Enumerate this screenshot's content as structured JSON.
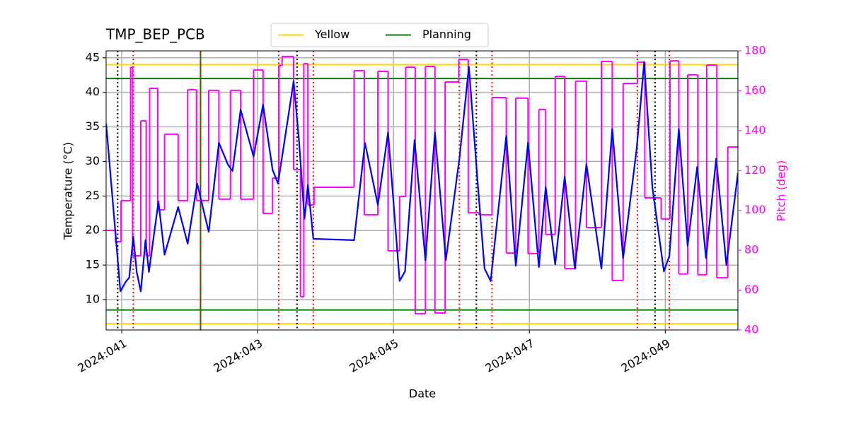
{
  "chart_data": {
    "type": "line",
    "title": "TMP_BEP_PCB",
    "xlabel": "Date",
    "ylabel": "Temperature (°C)",
    "y2label": "Pitch (deg)",
    "xlim": [
      40.77,
      50.07
    ],
    "xticks": [
      {
        "value": 41,
        "label": "2024:041"
      },
      {
        "value": 43,
        "label": "2024:043"
      },
      {
        "value": 45,
        "label": "2024:045"
      },
      {
        "value": 47,
        "label": "2024:047"
      },
      {
        "value": 49,
        "label": "2024:049"
      }
    ],
    "ylim": [
      5.6,
      46.0
    ],
    "yticks": [
      10,
      15,
      20,
      25,
      30,
      35,
      40,
      45
    ],
    "y2lim": [
      40,
      180
    ],
    "y2ticks": [
      40,
      60,
      80,
      100,
      120,
      140,
      160,
      180
    ],
    "grid": true,
    "legend": "upper center",
    "limits": [
      {
        "name": "Yellow",
        "color": "#ffd700",
        "values": [
          6.5,
          44
        ]
      },
      {
        "name": "Planning",
        "color": "#008000",
        "values": [
          8.5,
          42
        ]
      }
    ],
    "vlines": [
      {
        "x": 42.16,
        "color": "#008000",
        "style": "solid"
      },
      {
        "x": 40.94,
        "color": "#000000",
        "style": "dotted"
      },
      {
        "x": 43.58,
        "color": "#000000",
        "style": "dotted"
      },
      {
        "x": 46.22,
        "color": "#000000",
        "style": "dotted"
      },
      {
        "x": 48.85,
        "color": "#000000",
        "style": "dotted"
      },
      {
        "x": 41.17,
        "color": "#ff0000",
        "style": "dotted"
      },
      {
        "x": 42.16,
        "color": "#ff0000",
        "style": "dotted"
      },
      {
        "x": 43.31,
        "color": "#ff0000",
        "style": "dotted"
      },
      {
        "x": 43.82,
        "color": "#ff0000",
        "style": "dotted"
      },
      {
        "x": 45.97,
        "color": "#ff0000",
        "style": "dotted"
      },
      {
        "x": 46.45,
        "color": "#ff0000",
        "style": "dotted"
      },
      {
        "x": 48.59,
        "color": "#ff0000",
        "style": "dotted"
      },
      {
        "x": 49.06,
        "color": "#ff0000",
        "style": "dotted"
      }
    ],
    "series": [
      {
        "color": "#ff00ff",
        "axis": "y2",
        "drawstyle": "steps-post",
        "x": [
          40.77,
          40.91,
          40.99,
          41.13,
          41.16,
          41.28,
          41.36,
          41.41,
          41.53,
          41.63,
          41.83,
          41.97,
          42.1,
          42.28,
          42.43,
          42.6,
          42.75,
          42.94,
          43.08,
          43.22,
          43.31,
          43.36,
          43.53,
          43.63,
          43.68,
          43.74,
          43.83,
          44.42,
          44.57,
          44.77,
          44.92,
          45.09,
          45.18,
          45.32,
          45.47,
          45.61,
          45.76,
          45.96,
          46.1,
          46.26,
          46.45,
          46.66,
          46.8,
          46.98,
          47.14,
          47.24,
          47.38,
          47.52,
          47.68,
          47.84,
          48.06,
          48.22,
          48.38,
          48.59,
          48.7,
          48.94,
          49.07,
          49.2,
          49.33,
          49.48,
          49.61,
          49.76,
          49.92,
          50.07
        ],
        "values": [
          90.0,
          84.3,
          104.9,
          171.8,
          77.2,
          144.9,
          77.2,
          161.2,
          100.3,
          138.2,
          104.9,
          160.5,
          104.9,
          160.2,
          105.6,
          160.2,
          105.6,
          170.4,
          98.5,
          116.2,
          172.6,
          177.2,
          120.5,
          56.7,
          173.6,
          102.7,
          111.6,
          170.1,
          97.8,
          169.7,
          79.7,
          107.0,
          171.8,
          48.2,
          172.2,
          48.5,
          164.4,
          175.7,
          98.8,
          97.8,
          156.6,
          78.6,
          156.3,
          78.3,
          150.6,
          87.9,
          167.2,
          70.8,
          164.8,
          91.4,
          174.7,
          64.8,
          163.7,
          174.3,
          106.3,
          95.7,
          175.0,
          68.1,
          168.0,
          67.7,
          172.9,
          66.2,
          131.8,
          131.8
        ]
      },
      {
        "color": "#0000ff",
        "x": [
          40.77,
          40.98,
          41.06,
          41.11,
          41.17,
          41.22,
          41.28,
          41.35,
          41.4,
          41.54,
          41.63,
          41.83,
          41.97,
          42.11,
          42.28,
          42.43,
          42.56,
          42.63,
          42.75,
          42.94,
          43.08,
          43.22,
          43.3,
          43.53,
          43.61,
          43.69,
          43.74,
          43.82,
          44.42,
          44.58,
          44.77,
          44.92,
          45.09,
          45.17,
          45.31,
          45.47,
          45.61,
          45.77,
          45.97,
          46.11,
          46.24,
          46.34,
          46.43,
          46.66,
          46.8,
          46.98,
          47.14,
          47.24,
          47.38,
          47.52,
          47.67,
          47.84,
          48.06,
          48.22,
          48.38,
          48.58,
          48.69,
          48.81,
          48.98,
          49.06,
          49.2,
          49.33,
          49.47,
          49.6,
          49.75,
          49.9,
          50.07
        ],
        "values": [
          35.5,
          11.2,
          12.6,
          13.2,
          19.1,
          14.0,
          11.2,
          18.6,
          14.0,
          24.2,
          16.5,
          23.4,
          18.1,
          26.8,
          19.8,
          32.7,
          29.6,
          28.6,
          37.5,
          30.7,
          38.2,
          28.8,
          26.8,
          41.6,
          32.9,
          21.7,
          26.6,
          18.8,
          18.6,
          32.7,
          23.7,
          34.2,
          12.7,
          14.1,
          33.1,
          15.7,
          34.2,
          15.7,
          30.4,
          43.7,
          26.8,
          14.5,
          12.7,
          33.7,
          14.9,
          32.7,
          14.7,
          26.3,
          15.1,
          27.8,
          14.5,
          29.6,
          14.5,
          34.7,
          16.0,
          31.9,
          44.4,
          26.3,
          14.1,
          16.3,
          34.7,
          17.8,
          29.2,
          16.0,
          30.4,
          15.0,
          28.3
        ]
      }
    ]
  }
}
